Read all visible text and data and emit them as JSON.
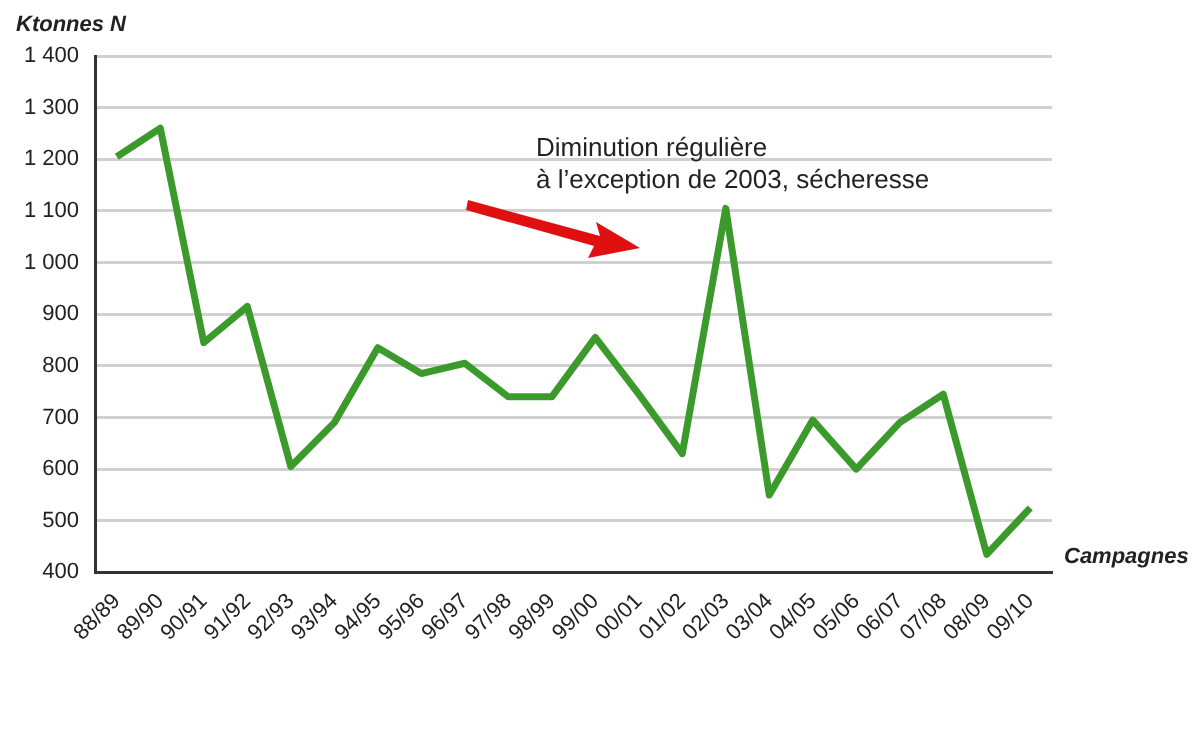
{
  "chart_data": {
    "type": "line",
    "categories": [
      "88/89",
      "89/90",
      "90/91",
      "91/92",
      "92/93",
      "93/94",
      "94/95",
      "95/96",
      "96/97",
      "97/98",
      "98/99",
      "99/00",
      "00/01",
      "01/02",
      "02/03",
      "03/04",
      "04/05",
      "05/06",
      "06/07",
      "07/08",
      "08/09",
      "09/10"
    ],
    "series": [
      {
        "color": "#3c9a2c",
        "values": [
          1205,
          1260,
          845,
          915,
          605,
          690,
          835,
          785,
          805,
          740,
          740,
          855,
          745,
          630,
          1105,
          550,
          695,
          600,
          690,
          745,
          435,
          525
        ]
      }
    ],
    "ylim": [
      400,
      1400
    ],
    "yticks": [
      400,
      500,
      600,
      700,
      800,
      900,
      {
        "value": 1000,
        "label": "1 000"
      },
      {
        "value": 1100,
        "label": "1 100"
      },
      {
        "value": 1200,
        "label": "1 200"
      },
      {
        "value": 1300,
        "label": "1 300"
      },
      {
        "value": 1400,
        "label": "1 400"
      }
    ],
    "xlabel": "Campagnes",
    "ylabel": "Ktonnes N",
    "annotations": [
      "Diminution régulière\nà l’exception de 2003, sécheresse"
    ],
    "grid": "y",
    "legend": false,
    "marker": "none",
    "line_style": "solid"
  }
}
